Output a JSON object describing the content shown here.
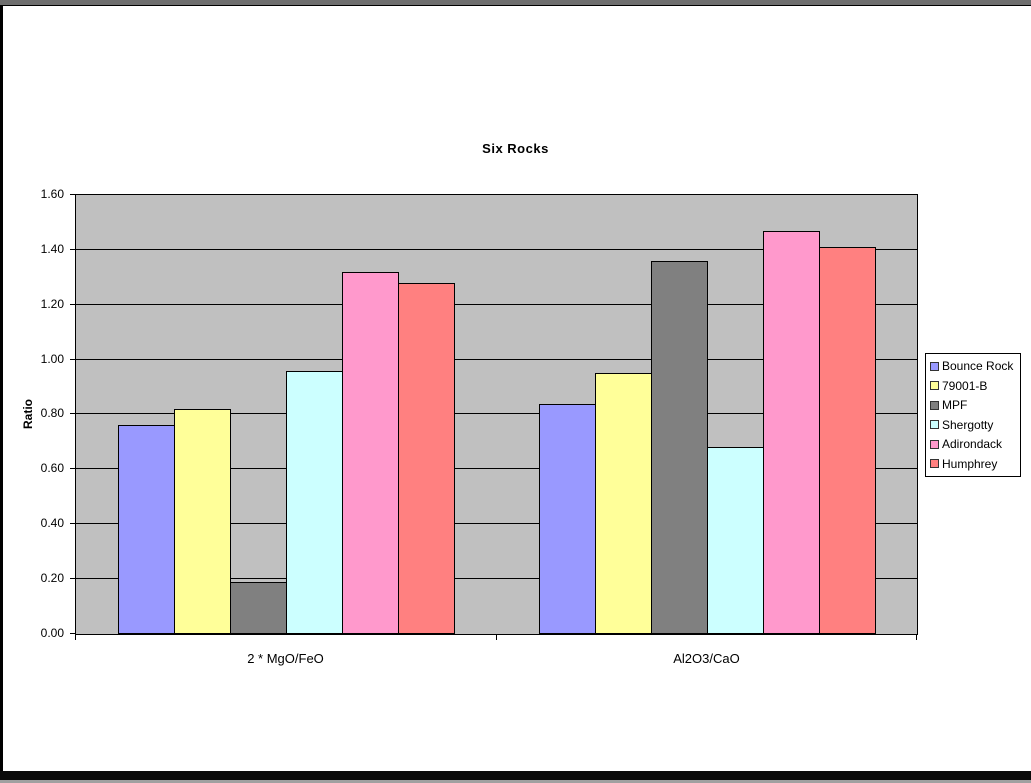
{
  "frame": {
    "top_strip_color": "#6e6e6e",
    "edge_color": "#000000",
    "bottom_bar_color": "#0a0a0a",
    "bottom_sliver_color": "#a0a0a0",
    "page_background": "#ffffff"
  },
  "chart_data": {
    "type": "bar",
    "title": "Six Rocks",
    "ylabel": "Ratio",
    "xlabel": "",
    "categories": [
      "2 * MgO/FeO",
      "Al2O3/CaO"
    ],
    "series": [
      {
        "name": "Bounce Rock",
        "color": "#9999FF",
        "values": [
          0.76,
          0.84
        ]
      },
      {
        "name": "79001-B",
        "color": "#FFFF99",
        "values": [
          0.82,
          0.95
        ]
      },
      {
        "name": "MPF",
        "color": "#808080",
        "values": [
          0.19,
          1.36
        ]
      },
      {
        "name": "Shergotty",
        "color": "#CCFFFF",
        "values": [
          0.96,
          0.68
        ]
      },
      {
        "name": "Adirondack",
        "color": "#FF99CC",
        "values": [
          1.32,
          1.47
        ]
      },
      {
        "name": "Humphrey",
        "color": "#FF8080",
        "values": [
          1.28,
          1.41
        ]
      }
    ],
    "ylim": [
      0.0,
      1.6
    ],
    "ytick_step": 0.2,
    "ytick_labels": [
      "0.00",
      "0.20",
      "0.40",
      "0.60",
      "0.80",
      "1.00",
      "1.20",
      "1.40",
      "1.60"
    ],
    "plot_background": "#C0C0C0",
    "grid": true,
    "gridline_color": "#000000",
    "legend_position": "right"
  }
}
